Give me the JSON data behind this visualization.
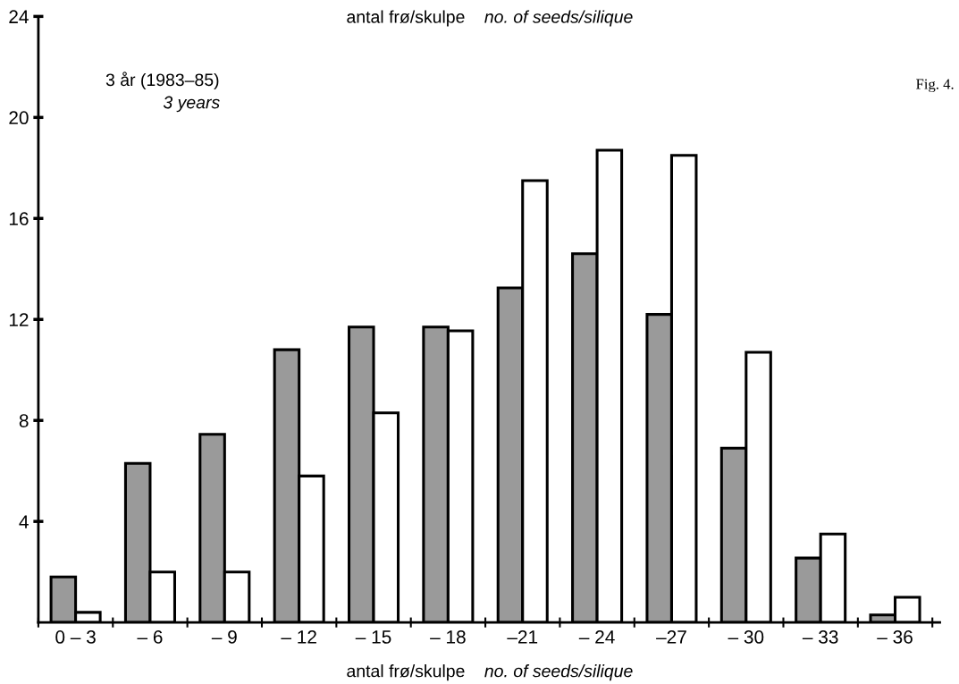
{
  "chart_data": {
    "type": "bar",
    "categories": [
      "0 – 3",
      "– 6",
      "– 9",
      "– 12",
      "– 15",
      "– 18",
      "–21",
      "– 24",
      "–27",
      "– 30",
      "– 33",
      "– 36"
    ],
    "series": [
      {
        "color": "#9a9a9a",
        "values": [
          1.8,
          6.3,
          7.45,
          10.8,
          11.7,
          11.7,
          13.25,
          14.6,
          12.2,
          6.9,
          2.55,
          0.3
        ]
      },
      {
        "color": "#ffffff",
        "values": [
          0.4,
          2.0,
          2.0,
          5.8,
          8.3,
          11.55,
          17.5,
          18.7,
          18.5,
          10.7,
          3.5,
          1.0
        ]
      }
    ],
    "ylim": [
      0,
      24
    ],
    "yticks": [
      4,
      8,
      12,
      16,
      20,
      24
    ],
    "annotations": [
      "antal frø/skulpe",
      "no. of seeds/silique",
      "3 år (1983–85)",
      "3 years",
      "Fig. 4.",
      "antal frø/skulpe",
      "no. of seeds/silique"
    ],
    "grid": false,
    "legend": false
  }
}
